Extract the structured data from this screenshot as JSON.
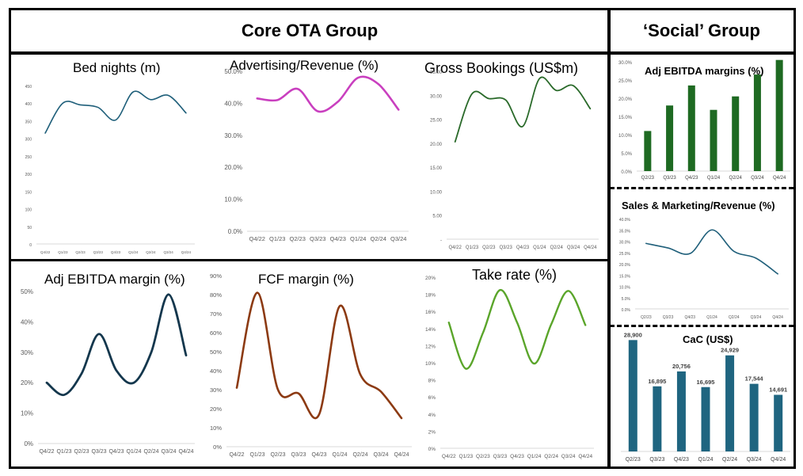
{
  "headers": {
    "core": "Core OTA Group",
    "social": "‘Social’ Group"
  },
  "chart_data": [
    {
      "id": "bed",
      "type": "line",
      "title": "Bed nights (m)",
      "color": "#1f5f7a",
      "categories": [
        "Q4/22",
        "Q1/23",
        "Q2/23",
        "Q3/23",
        "Q4/23",
        "Q1/24",
        "Q2/24",
        "Q3/24",
        "Q4/24"
      ],
      "values": [
        315,
        400,
        395,
        388,
        352,
        432,
        410,
        422,
        372
      ],
      "ylim": [
        0,
        450
      ],
      "yticks": [
        "0",
        "50",
        "100",
        "150",
        "200",
        "250",
        "300",
        "350",
        "400",
        "450"
      ]
    },
    {
      "id": "adv",
      "type": "line",
      "title": "Advertising/Revenue (%)",
      "color": "#c93fbf",
      "categories": [
        "Q4/22",
        "Q1/23",
        "Q2/23",
        "Q3/23",
        "Q4/23",
        "Q1/24",
        "Q2/24",
        "Q3/24"
      ],
      "values": [
        41.5,
        41.0,
        44.5,
        37.5,
        40.5,
        48.0,
        46.0,
        38.0
      ],
      "ylim": [
        0,
        50
      ],
      "yticks": [
        "0.0%",
        "10.0%",
        "20.0%",
        "30.0%",
        "40.0%",
        "50.0%"
      ]
    },
    {
      "id": "gb",
      "type": "line",
      "title": "Gross Bookings (US$m)",
      "color": "#2a6a2a",
      "categories": [
        "Q4/22",
        "Q1/23",
        "Q2/23",
        "Q3/23",
        "Q4/23",
        "Q1/24",
        "Q2/24",
        "Q3/24",
        "Q4/24"
      ],
      "values": [
        20.3,
        30.3,
        29.3,
        29.0,
        23.5,
        33.5,
        31.0,
        32.0,
        27.2
      ],
      "ylim": [
        0,
        35
      ],
      "yticks": [
        "-",
        "5.00",
        "10.00",
        "15.00",
        "20.00",
        "25.00",
        "30.00",
        "35.00"
      ]
    },
    {
      "id": "ebitda",
      "type": "line",
      "title": "Adj EBITDA margin (%)",
      "color": "#14374d",
      "categories": [
        "Q4/22",
        "Q1/23",
        "Q2/23",
        "Q3/23",
        "Q4/23",
        "Q1/24",
        "Q2/24",
        "Q3/24",
        "Q4/24"
      ],
      "values": [
        20,
        16,
        23,
        36,
        24,
        20,
        30,
        49,
        29
      ],
      "ylim": [
        0,
        50
      ],
      "yticks": [
        "0%",
        "10%",
        "20%",
        "30%",
        "40%",
        "50%"
      ]
    },
    {
      "id": "fcf",
      "type": "line",
      "title": "FCF margin (%)",
      "color": "#8c3a12",
      "categories": [
        "Q4/22",
        "Q1/23",
        "Q2/23",
        "Q3/23",
        "Q4/23",
        "Q1/24",
        "Q2/24",
        "Q3/24",
        "Q4/24"
      ],
      "values": [
        31,
        81,
        30,
        28,
        17,
        74,
        38,
        29,
        15
      ],
      "ylim": [
        0,
        90
      ],
      "yticks": [
        "0%",
        "10%",
        "20%",
        "30%",
        "40%",
        "50%",
        "60%",
        "70%",
        "80%",
        "90%"
      ]
    },
    {
      "id": "take",
      "type": "line",
      "title": "Take rate (%)",
      "color": "#5aa52a",
      "categories": [
        "Q4/22",
        "Q1/23",
        "Q2/23",
        "Q3/23",
        "Q4/23",
        "Q1/24",
        "Q2/24",
        "Q3/24",
        "Q4/24"
      ],
      "values": [
        14.7,
        9.3,
        13.5,
        18.5,
        14.7,
        9.9,
        14.5,
        18.4,
        14.4
      ],
      "ylim": [
        0,
        20
      ],
      "yticks": [
        "0%",
        "2%",
        "4%",
        "6%",
        "8%",
        "10%",
        "12%",
        "14%",
        "16%",
        "18%",
        "20%"
      ]
    },
    {
      "id": "s_ebitda",
      "type": "bar",
      "title": "Adj EBITDA margins (%)",
      "color": "#1e6a22",
      "categories": [
        "Q2/23",
        "Q3/23",
        "Q4/23",
        "Q1/24",
        "Q2/24",
        "Q3/24",
        "Q4/24"
      ],
      "values": [
        11.0,
        18.0,
        23.5,
        16.8,
        20.5,
        26.5,
        30.5
      ],
      "ylim": [
        0,
        30
      ],
      "yticks": [
        "0.0%",
        "5.0%",
        "10.0%",
        "15.0%",
        "20.0%",
        "25.0%",
        "30.0%"
      ]
    },
    {
      "id": "s_sm",
      "type": "line",
      "title": "Sales & Marketing/Revenue (%)",
      "color": "#1f5f7a",
      "categories": [
        "Q2/23",
        "Q3/23",
        "Q4/23",
        "Q1/24",
        "Q2/24",
        "Q3/24",
        "Q4/24"
      ],
      "values": [
        29,
        27,
        24.5,
        35,
        25.5,
        22.5,
        15.5
      ],
      "ylim": [
        0,
        40
      ],
      "yticks": [
        "0.0%",
        "5.0%",
        "10.0%",
        "15.0%",
        "20.0%",
        "25.0%",
        "30.0%",
        "35.0%",
        "40.0%"
      ]
    },
    {
      "id": "cac",
      "type": "bar",
      "title": "CaC (US$)",
      "color": "#1f6580",
      "categories": [
        "Q2/23",
        "Q3/23",
        "Q4/23",
        "Q1/24",
        "Q2/24",
        "Q3/24",
        "Q4/24"
      ],
      "values": [
        28900,
        16895,
        20756,
        16695,
        24929,
        17544,
        14691
      ],
      "labels": [
        "28,900",
        "16,895",
        "20,756",
        "16,695",
        "24,929",
        "17,544",
        "14,691"
      ],
      "ylim": [
        0,
        30000
      ]
    }
  ]
}
